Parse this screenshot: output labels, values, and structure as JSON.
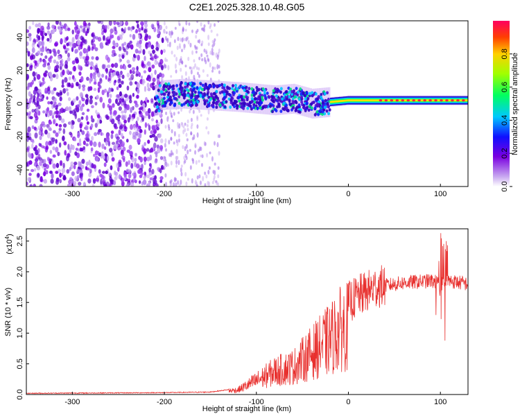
{
  "title": "C2E1.2025.328.10.48.G05",
  "chart_data": [
    {
      "type": "heatmap",
      "xlabel": "Height of straight line (km)",
      "ylabel": "Frequency (Hz)",
      "xlim": [
        -350,
        130
      ],
      "ylim": [
        -50,
        50
      ],
      "xticks": [
        -300,
        -200,
        -100,
        0,
        100
      ],
      "yticks": [
        -40,
        -20,
        0,
        20,
        40
      ],
      "colorbar": {
        "label": "Normalized spectral amplitude",
        "range": [
          0,
          1
        ],
        "ticks": [
          "0.0",
          "0.2",
          "0.4",
          "0.6",
          "0.8"
        ],
        "tick_values": [
          0.0,
          0.2,
          0.4,
          0.6,
          0.8
        ]
      },
      "ridge": [
        {
          "x": -205,
          "y": 5
        },
        {
          "x": -180,
          "y": 6
        },
        {
          "x": -150,
          "y": 5
        },
        {
          "x": -120,
          "y": 4
        },
        {
          "x": -100,
          "y": 3
        },
        {
          "x": -80,
          "y": 2
        },
        {
          "x": -60,
          "y": 3
        },
        {
          "x": -40,
          "y": 0
        },
        {
          "x": -20,
          "y": 1
        },
        {
          "x": 0,
          "y": 2
        },
        {
          "x": 50,
          "y": 2
        },
        {
          "x": 100,
          "y": 2
        },
        {
          "x": 130,
          "y": 2
        }
      ],
      "grid": false
    },
    {
      "type": "line",
      "xlabel": "Height of straight line (km)",
      "ylabel": "SNR (10 * v/v)",
      "y_multiplier": "(x10",
      "y_multiplier_exp": "4",
      "xlim": [
        -350,
        130
      ],
      "ylim": [
        0,
        2.7
      ],
      "xticks": [
        -300,
        -200,
        -100,
        0,
        100
      ],
      "yticks": [
        "0.0",
        "0.5",
        "1.0",
        "1.5",
        "2.0",
        "2.5"
      ],
      "ytick_values": [
        0.0,
        0.5,
        1.0,
        1.5,
        2.0,
        2.5
      ],
      "series": [
        {
          "color": "#e8302e",
          "envelope": [
            {
              "x": -350,
              "y": 0.02
            },
            {
              "x": -200,
              "y": 0.03
            },
            {
              "x": -150,
              "y": 0.04
            },
            {
              "x": -120,
              "y": 0.1
            },
            {
              "x": -100,
              "y": 0.3
            },
            {
              "x": -80,
              "y": 0.5
            },
            {
              "x": -60,
              "y": 0.6
            },
            {
              "x": -40,
              "y": 0.9
            },
            {
              "x": -20,
              "y": 1.2
            },
            {
              "x": -10,
              "y": 1.4
            },
            {
              "x": 0,
              "y": 1.5
            },
            {
              "x": 10,
              "y": 1.6
            },
            {
              "x": 30,
              "y": 1.75
            },
            {
              "x": 60,
              "y": 1.82
            },
            {
              "x": 90,
              "y": 1.85
            },
            {
              "x": 105,
              "y": 1.8
            },
            {
              "x": 110,
              "y": 1.85
            },
            {
              "x": 130,
              "y": 1.8
            }
          ]
        }
      ],
      "grid": false
    }
  ]
}
